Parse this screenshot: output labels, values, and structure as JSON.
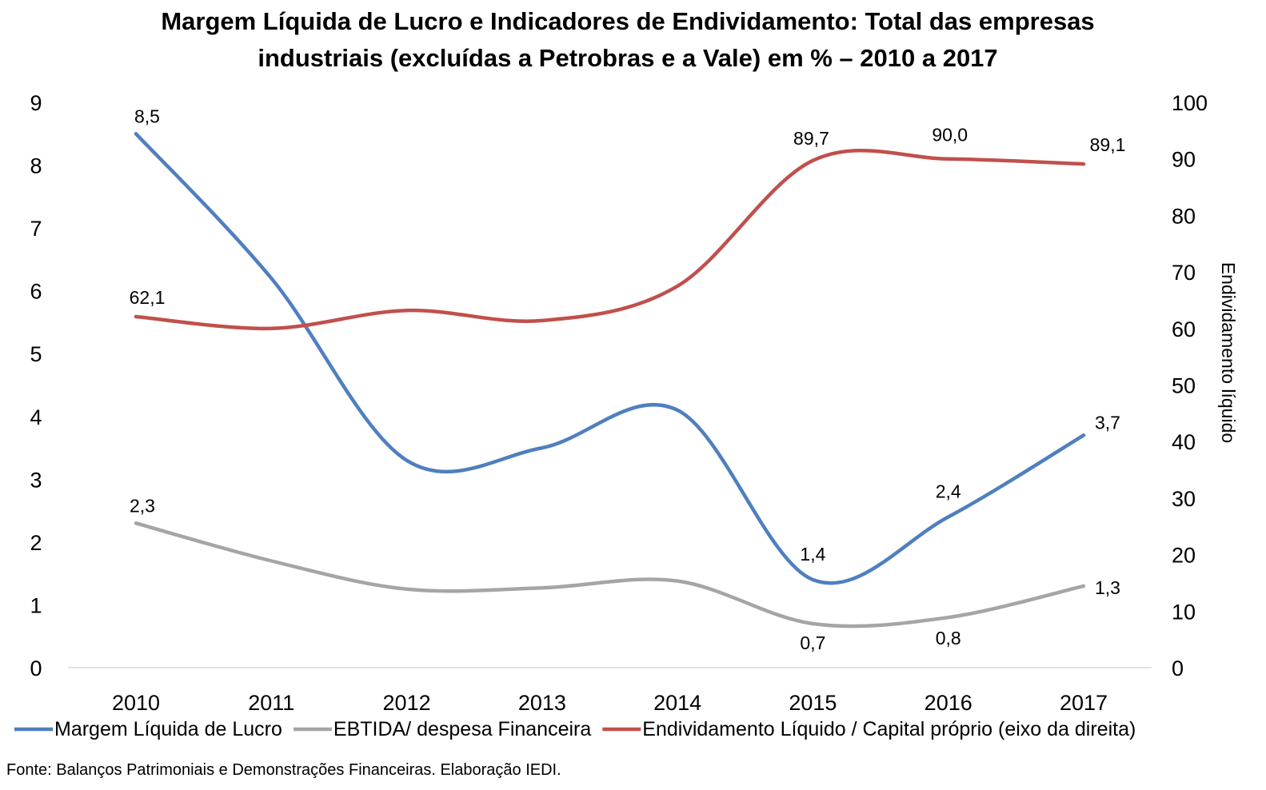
{
  "chart_data": {
    "type": "line",
    "title_line1": "Margem Líquida de Lucro e Indicadores de Endividamento: Total das empresas",
    "title_line2": "industriais (excluídas a Petrobras e a Vale) em % – 2010 a 2017",
    "categories": [
      "2010",
      "2011",
      "2012",
      "2013",
      "2014",
      "2015",
      "2016",
      "2017"
    ],
    "y_left": {
      "ylim": [
        0,
        9
      ],
      "ticks": [
        "0",
        "1",
        "2",
        "3",
        "4",
        "5",
        "6",
        "7",
        "8",
        "9"
      ],
      "label": ""
    },
    "y_right": {
      "ylim": [
        0,
        100
      ],
      "ticks": [
        "0",
        "10",
        "20",
        "30",
        "40",
        "50",
        "60",
        "70",
        "80",
        "90",
        "100"
      ],
      "label": "Endividamento líquido"
    },
    "series": [
      {
        "name": "Margem Líquida de Lucro",
        "axis": "left",
        "color": "#4F7FBF",
        "values": [
          8.5,
          6.2,
          3.3,
          3.5,
          4.1,
          1.4,
          2.4,
          3.7
        ],
        "labels": [
          "8,5",
          "",
          "",
          "",
          "",
          "1,4",
          "2,4",
          "3,7"
        ]
      },
      {
        "name": "EBTIDA/ despesa Financeira",
        "axis": "left",
        "color": "#A5A5A5",
        "values": [
          2.3,
          1.7,
          1.25,
          1.27,
          1.38,
          0.7,
          0.8,
          1.3
        ],
        "labels": [
          "2,3",
          "",
          "",
          "",
          "",
          "0,7",
          "0,8",
          "1,3"
        ]
      },
      {
        "name": "Endividamento Líquido / Capital próprio (eixo da direita)",
        "axis": "right",
        "color": "#C0504D",
        "values": [
          62.1,
          60.0,
          63.2,
          61.4,
          67.5,
          89.7,
          90.0,
          89.1
        ],
        "labels": [
          "62,1",
          "",
          "",
          "",
          "",
          "89,7",
          "90,0",
          "89,1"
        ]
      }
    ],
    "legend_position": "bottom",
    "grid": false,
    "source": "Fonte: Balanços Patrimoniais e Demonstrações Financeiras. Elaboração IEDI."
  }
}
